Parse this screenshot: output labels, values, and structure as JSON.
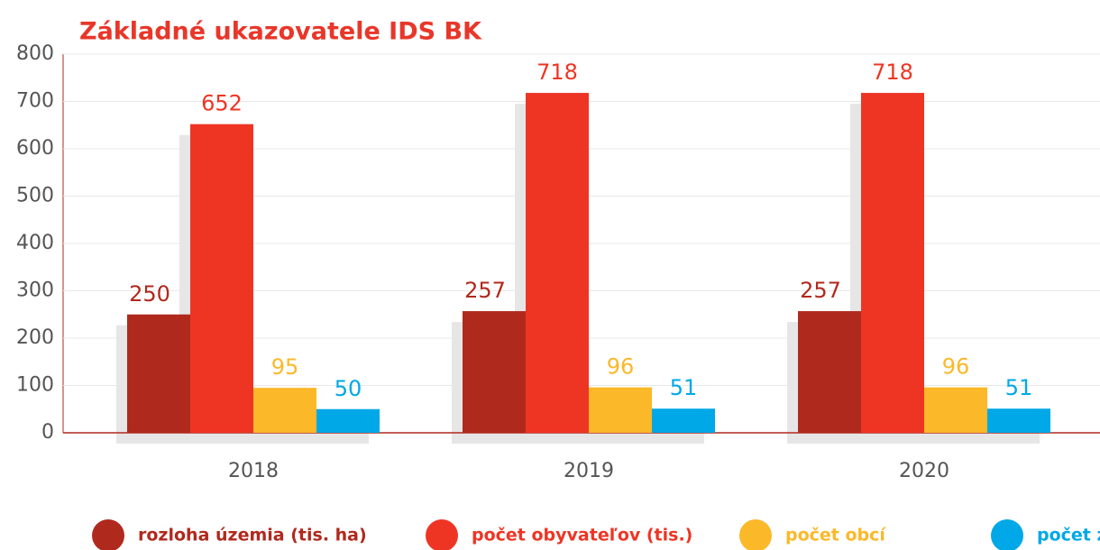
{
  "chart_data": {
    "type": "bar",
    "title": "Základné ukazovatele IDS BK",
    "categories": [
      "2018",
      "2019",
      "2020"
    ],
    "series": [
      {
        "name": "rozloha územia (tis. ha)",
        "color": "#b0291d",
        "values": [
          250,
          257,
          257
        ]
      },
      {
        "name": "počet obyvateľov (tis.)",
        "color": "#ee3524",
        "values": [
          652,
          718,
          718
        ]
      },
      {
        "name": "počet obcí",
        "color": "#fbb829",
        "values": [
          95,
          96,
          96
        ]
      },
      {
        "name": "počet zón",
        "color": "#00a8e7",
        "values": [
          50,
          51,
          51
        ]
      }
    ],
    "ylim": [
      0,
      800
    ],
    "yticks": [
      0,
      100,
      200,
      300,
      400,
      500,
      600,
      700,
      800
    ],
    "grid": true
  }
}
